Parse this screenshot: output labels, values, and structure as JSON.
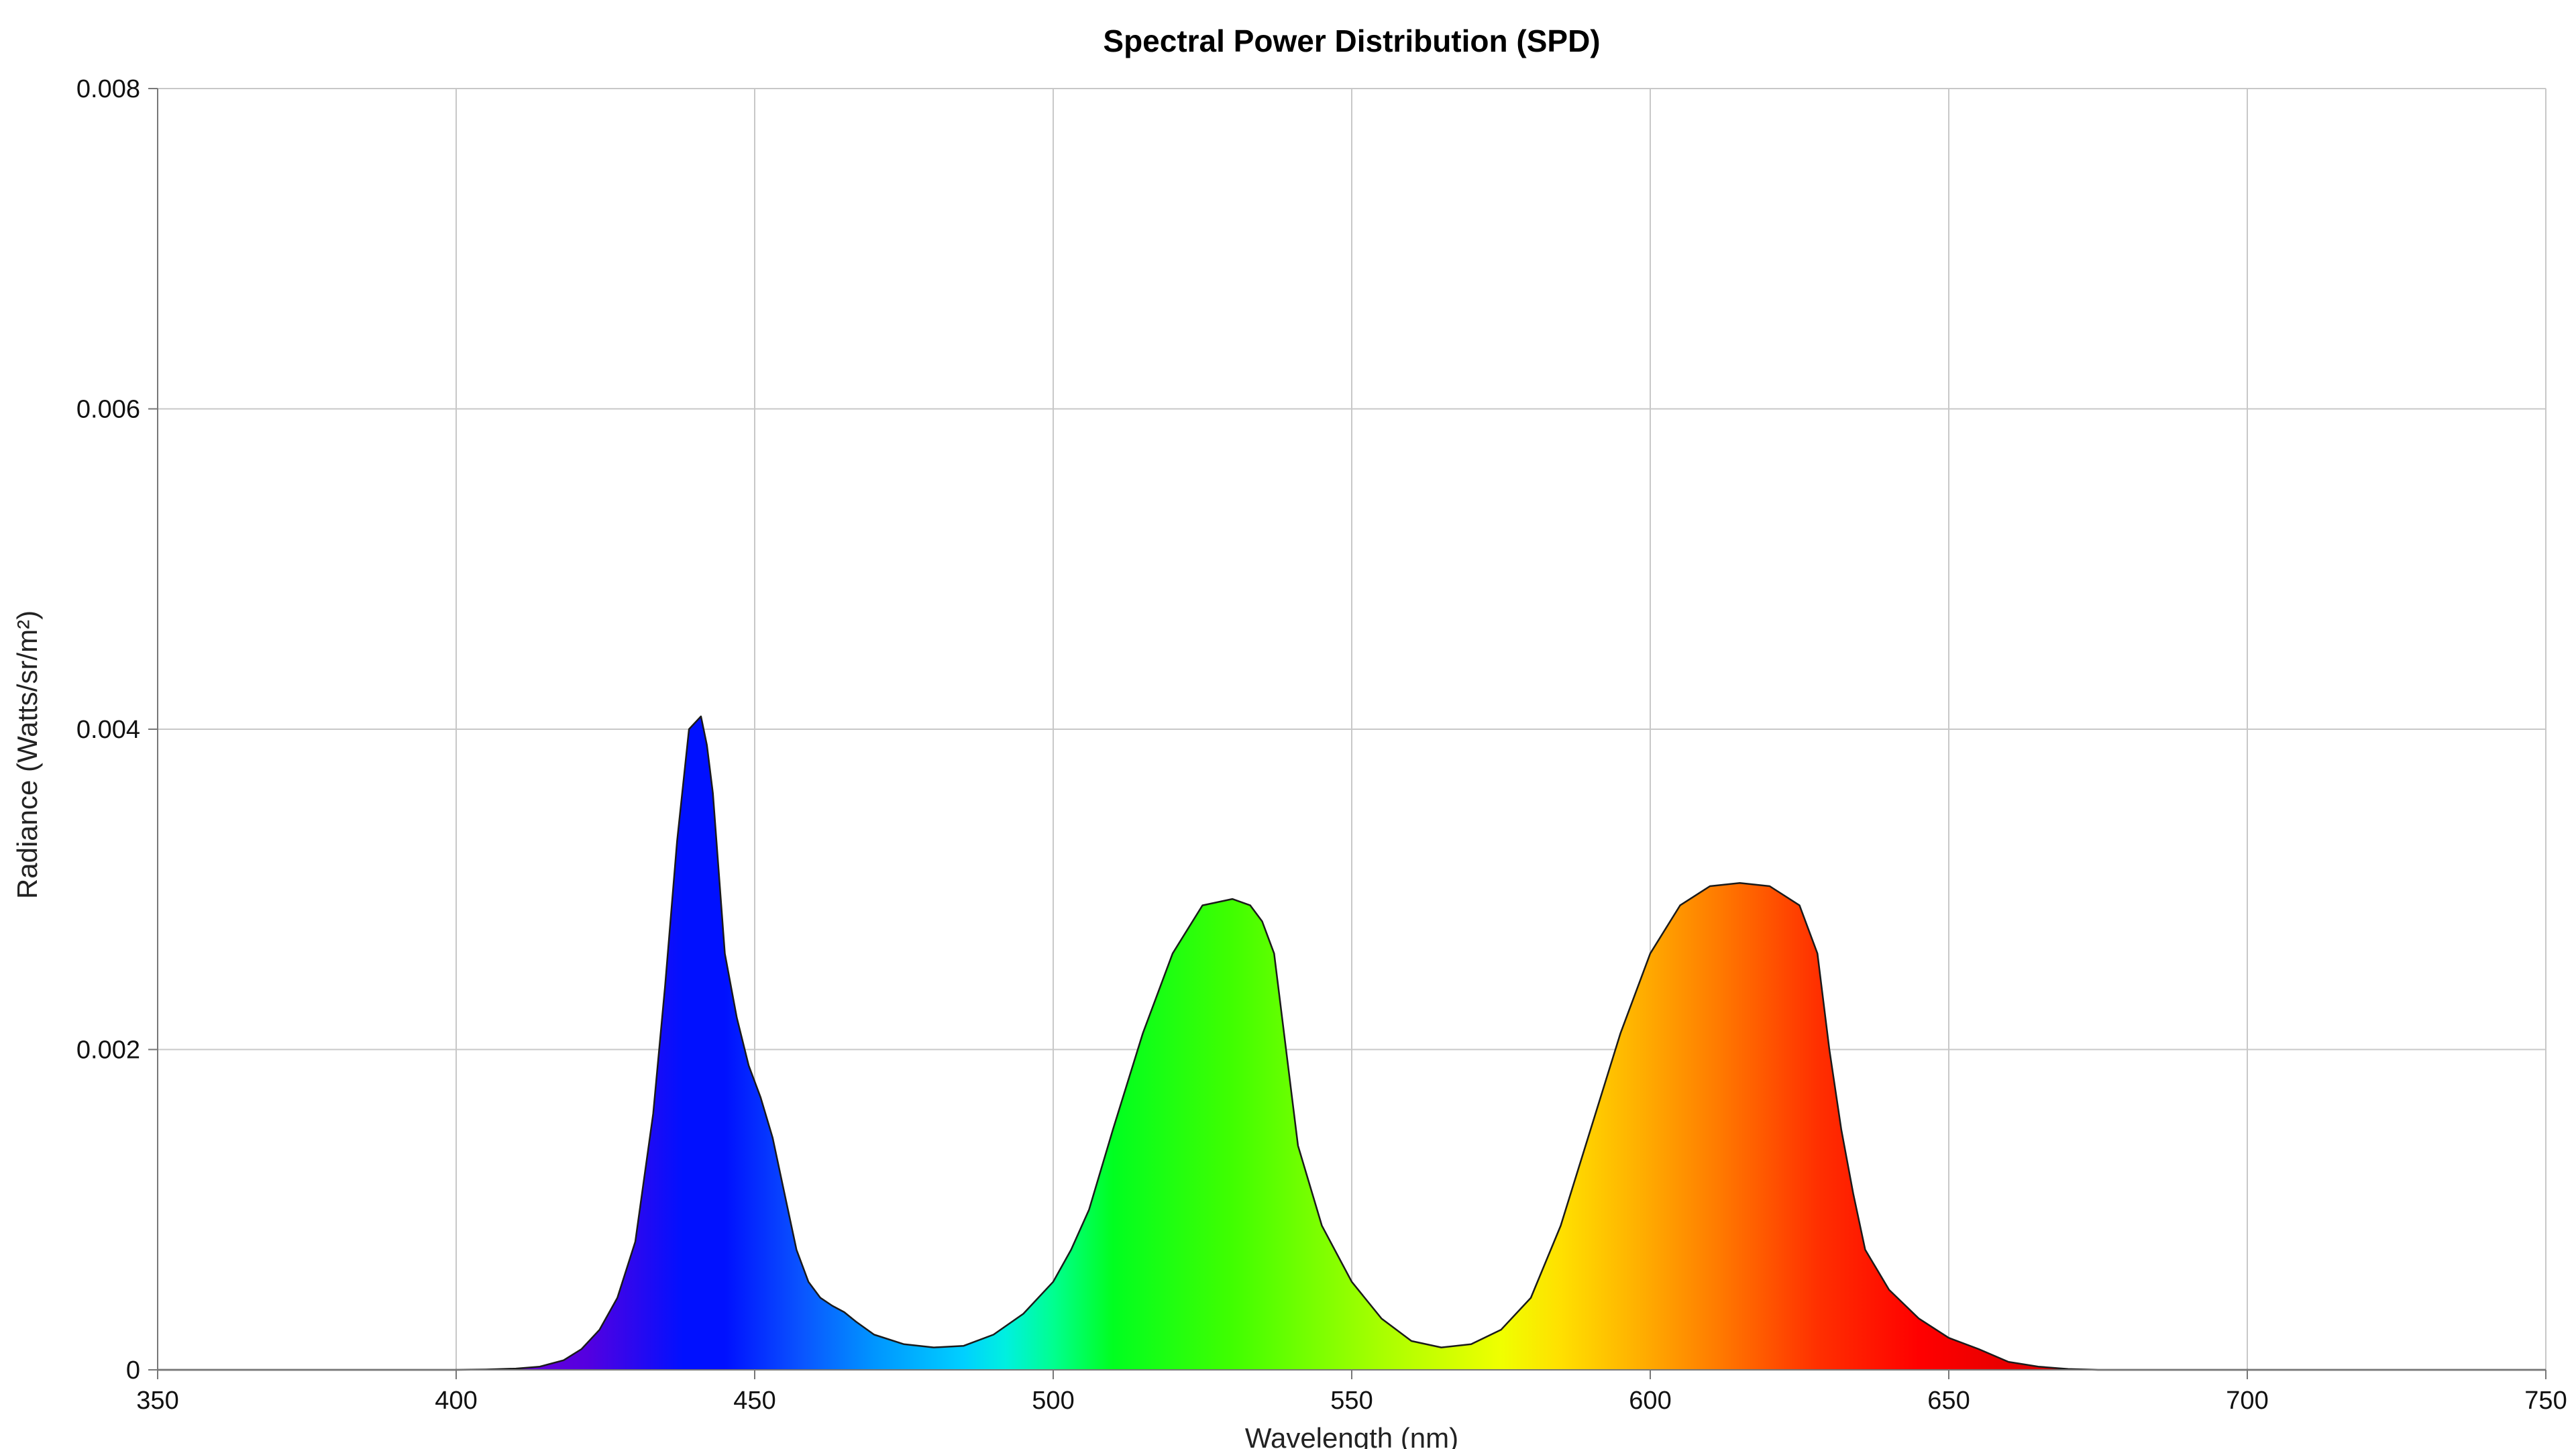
{
  "chart_data": {
    "type": "area",
    "title": "Spectral Power Distribution (SPD)",
    "xlabel": "Wavelength (nm)",
    "ylabel": "Radiance (Watts/sr/m²)",
    "xlim": [
      350,
      750
    ],
    "ylim": [
      0,
      0.008
    ],
    "x_ticks": [
      350,
      400,
      450,
      500,
      550,
      600,
      650,
      700,
      750
    ],
    "x_tick_labels": [
      "350",
      "400",
      "450",
      "500",
      "550",
      "600",
      "650",
      "700",
      "750"
    ],
    "y_ticks": [
      0,
      0.002,
      0.004,
      0.006,
      0.008
    ],
    "y_tick_labels": [
      "0",
      "0.002",
      "0.004",
      "0.006",
      "0.008"
    ],
    "grid": true,
    "fill": "visible-spectrum gradient",
    "series": [
      {
        "x": [
          350,
          400,
          405,
          410,
          414,
          418,
          421,
          424,
          427,
          430,
          433,
          435,
          437,
          439,
          441,
          442,
          443,
          444,
          445,
          447,
          449,
          451,
          453,
          455,
          457,
          459,
          461,
          463,
          465,
          467,
          470,
          475,
          480,
          485,
          490,
          495,
          500,
          503,
          506,
          510,
          515,
          520,
          525,
          530,
          533,
          535,
          537,
          539,
          541,
          545,
          550,
          555,
          560,
          565,
          570,
          575,
          580,
          585,
          590,
          595,
          600,
          605,
          610,
          615,
          620,
          625,
          628,
          630,
          632,
          634,
          636,
          640,
          645,
          650,
          655,
          660,
          665,
          670,
          675,
          680,
          690,
          700,
          710,
          720,
          750
        ],
        "y": [
          0,
          0,
          2e-06,
          8e-06,
          2e-05,
          6e-05,
          0.00013,
          0.00025,
          0.00045,
          0.0008,
          0.0016,
          0.0024,
          0.0033,
          0.004,
          0.00408,
          0.0039,
          0.0036,
          0.0031,
          0.0026,
          0.0022,
          0.0019,
          0.0017,
          0.00145,
          0.0011,
          0.00075,
          0.00055,
          0.00045,
          0.0004,
          0.00036,
          0.0003,
          0.00022,
          0.00016,
          0.00014,
          0.00015,
          0.00022,
          0.00035,
          0.00055,
          0.00075,
          0.001,
          0.0015,
          0.0021,
          0.0026,
          0.0029,
          0.00294,
          0.0029,
          0.0028,
          0.0026,
          0.002,
          0.0014,
          0.0009,
          0.00055,
          0.00032,
          0.00018,
          0.00014,
          0.00016,
          0.00025,
          0.00045,
          0.0009,
          0.0015,
          0.0021,
          0.0026,
          0.0029,
          0.00302,
          0.00304,
          0.00302,
          0.0029,
          0.0026,
          0.002,
          0.0015,
          0.0011,
          0.00075,
          0.0005,
          0.00032,
          0.0002,
          0.00013,
          5e-05,
          2e-05,
          5e-06,
          0,
          0,
          0,
          0,
          0,
          0,
          0
        ]
      }
    ]
  }
}
